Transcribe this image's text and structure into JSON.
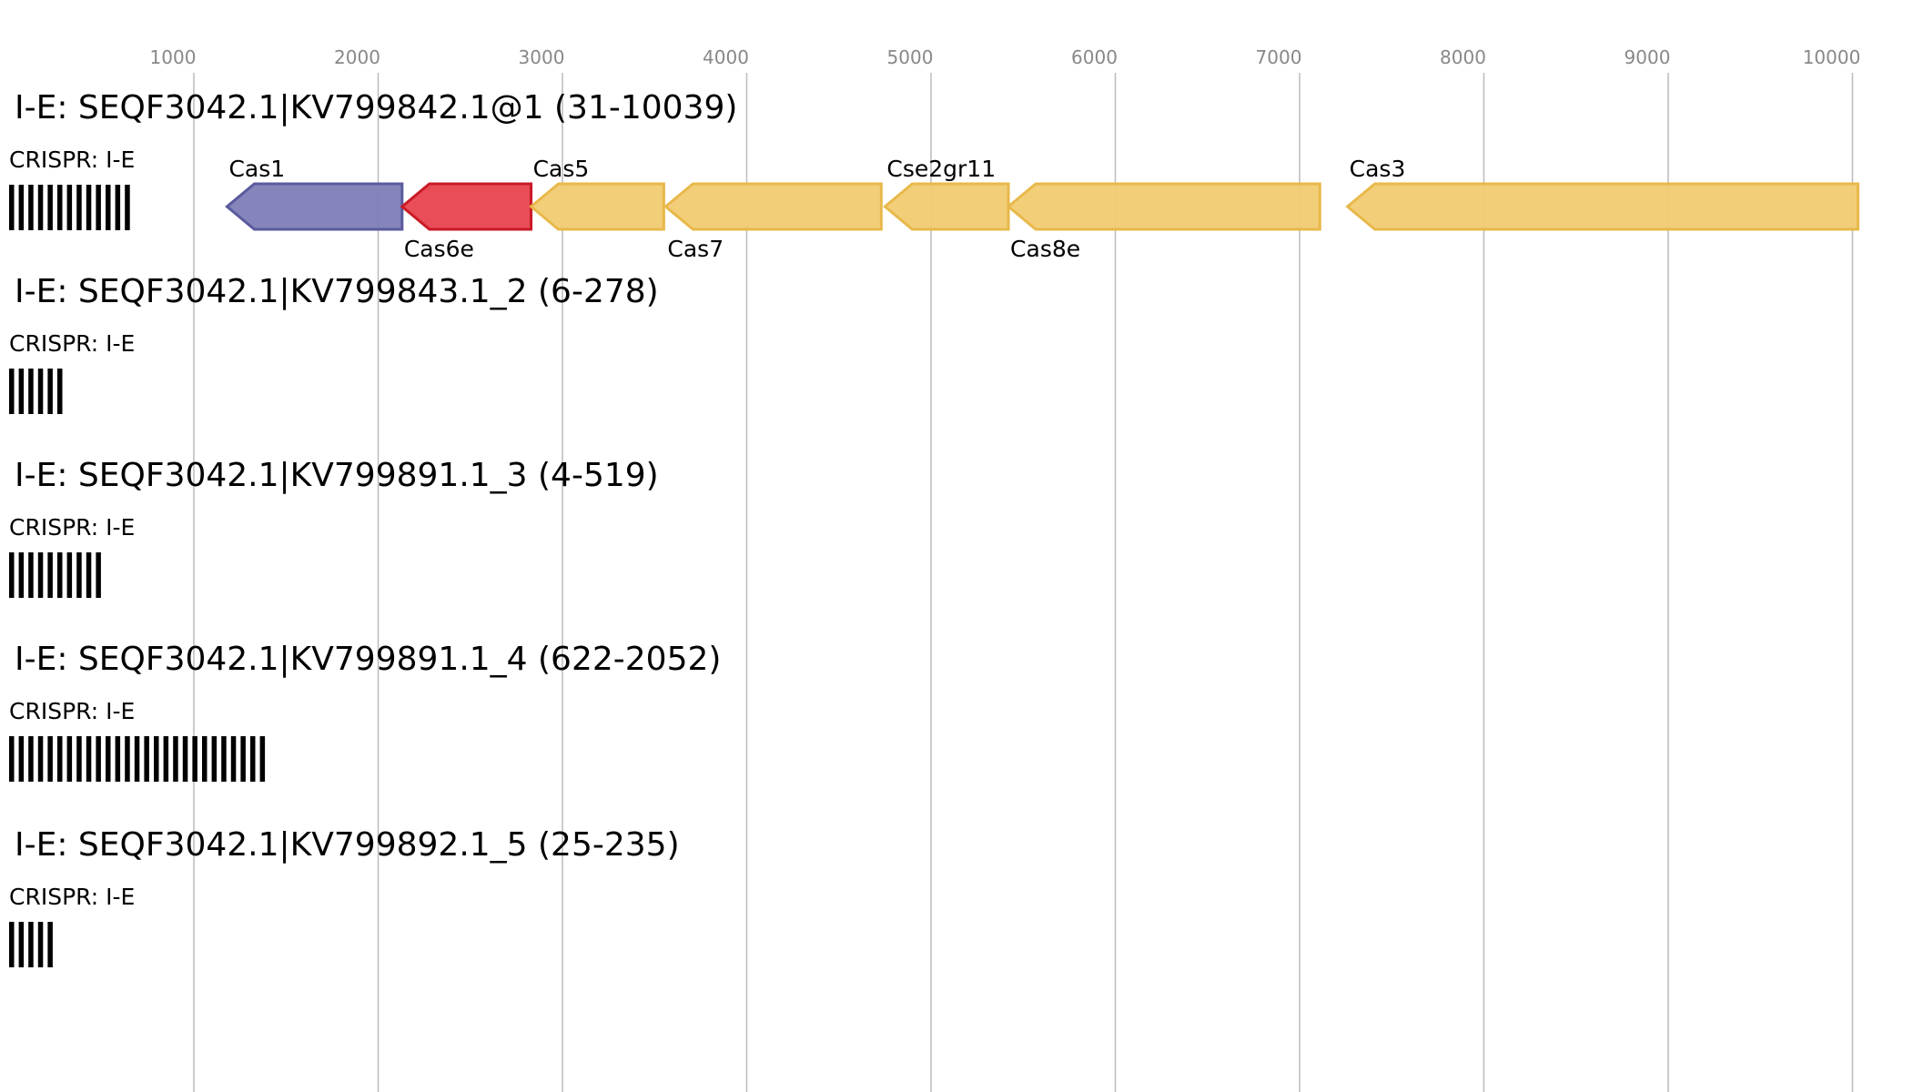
{
  "axis": {
    "ticks": [
      1000,
      2000,
      3000,
      4000,
      5000,
      6000,
      7000,
      8000,
      9000,
      10000
    ],
    "range": [
      -50,
      10100
    ]
  },
  "colors": {
    "Cas1": "#7e7eb8",
    "Cas1_stroke": "#5a5a9e",
    "Cas6e": "#e8434e",
    "Cas6e_stroke": "#c91a26",
    "Cas_yellow": "#f1cb72",
    "Cas_yellow_stroke": "#e8b84a",
    "grid": "#bbbbbb",
    "crispr": "#000000"
  },
  "tracks": [
    {
      "title": "I-E: SEQF3042.1|KV799842.1@1 (31-10039)",
      "crispr_label": "CRISPR: I-E",
      "crispr_repeats": 13,
      "genes": [
        {
          "name": "Cas1",
          "start": 1180,
          "end": 2130,
          "strand": "-",
          "color": "Cas1",
          "label_pos": "above"
        },
        {
          "name": "Cas6e",
          "start": 2130,
          "end": 2830,
          "strand": "-",
          "color": "Cas6e",
          "label_pos": "below"
        },
        {
          "name": "Cas5",
          "start": 2830,
          "end": 3550,
          "strand": "-",
          "color": "Cas_yellow",
          "label_pos": "above"
        },
        {
          "name": "Cas7",
          "start": 3560,
          "end": 4730,
          "strand": "-",
          "color": "Cas_yellow",
          "label_pos": "below"
        },
        {
          "name": "Cse2gr11",
          "start": 4750,
          "end": 5420,
          "strand": "-",
          "color": "Cas_yellow",
          "label_pos": "above"
        },
        {
          "name": "Cas8e",
          "start": 5420,
          "end": 7110,
          "strand": "-",
          "color": "Cas_yellow",
          "label_pos": "below"
        },
        {
          "name": "Cas3",
          "start": 7260,
          "end": 10030,
          "strand": "-",
          "color": "Cas_yellow",
          "label_pos": "above"
        }
      ]
    },
    {
      "title": "I-E: SEQF3042.1|KV799843.1_2 (6-278)",
      "crispr_label": "CRISPR: I-E",
      "crispr_repeats": 6,
      "genes": []
    },
    {
      "title": "I-E: SEQF3042.1|KV799891.1_3 (4-519)",
      "crispr_label": "CRISPR: I-E",
      "crispr_repeats": 10,
      "genes": []
    },
    {
      "title": "I-E: SEQF3042.1|KV799891.1_4 (622-2052)",
      "crispr_label": "CRISPR: I-E",
      "crispr_repeats": 27,
      "genes": []
    },
    {
      "title": "I-E: SEQF3042.1|KV799892.1_5 (25-235)",
      "crispr_label": "CRISPR: I-E",
      "crispr_repeats": 5,
      "genes": []
    }
  ]
}
